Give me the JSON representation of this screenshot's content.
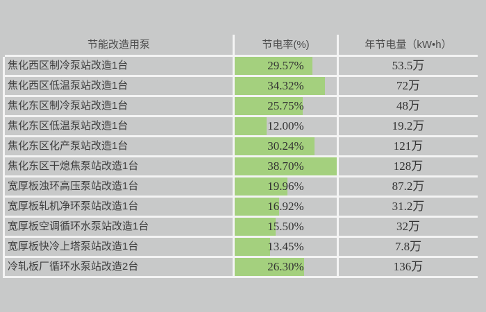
{
  "page": {
    "background_color": "#c8c9c9",
    "gridline_color": "#f4f4f4",
    "text_color": "#3f3f3f"
  },
  "chart_data": {
    "type": "table",
    "columns": [
      "节能改造用泵",
      "节电率(%)",
      "年节电量（kW•h）"
    ],
    "bar": {
      "column": "节电率(%)",
      "color": "#a4d07e",
      "max_scale": 38.7
    },
    "rows": [
      {
        "name": "焦化西区制冷泵站改造1台",
        "rate_label": "29.57%",
        "rate_value": 29.57,
        "annual": "53.5万"
      },
      {
        "name": "焦化西区低温泵站改造1台",
        "rate_label": "34.32%",
        "rate_value": 34.32,
        "annual": "72万"
      },
      {
        "name": "焦化东区制冷泵站改造1台",
        "rate_label": "25.75%",
        "rate_value": 25.75,
        "annual": "48万"
      },
      {
        "name": "焦化东区低温泵站改造1台",
        "rate_label": "12.00%",
        "rate_value": 12.0,
        "annual": "19.2万"
      },
      {
        "name": "焦化东区化产泵站改造1台",
        "rate_label": "30.24%",
        "rate_value": 30.24,
        "annual": "121万"
      },
      {
        "name": "焦化东区干熄焦泵站改造1台",
        "rate_label": "38.70%",
        "rate_value": 38.7,
        "annual": "128万"
      },
      {
        "name": "宽厚板浊环高压泵站改造1台",
        "rate_label": "19.96%",
        "rate_value": 19.96,
        "annual": "87.2万"
      },
      {
        "name": "宽厚板轧机净环泵站改造1台",
        "rate_label": "16.92%",
        "rate_value": 16.92,
        "annual": "31.2万"
      },
      {
        "name": "宽厚板空调循环水泵站改造1台",
        "rate_label": "15.50%",
        "rate_value": 15.5,
        "annual": "32万"
      },
      {
        "name": "宽厚板快冷上塔泵站改造1台",
        "rate_label": "13.45%",
        "rate_value": 13.45,
        "annual": "7.8万"
      },
      {
        "name": "冷轧板厂循环水泵站改造2台",
        "rate_label": "26.30%",
        "rate_value": 26.3,
        "annual": "136万"
      }
    ]
  }
}
